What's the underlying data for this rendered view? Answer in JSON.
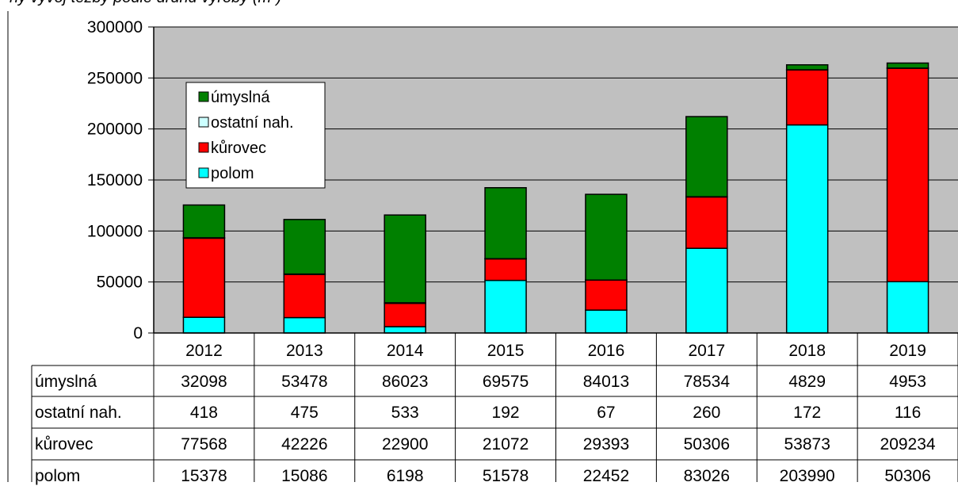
{
  "header": {
    "caption_fragment": "ný vývoj těžby podle druhu výroby (m³)"
  },
  "chart_data": {
    "type": "bar",
    "stacked": true,
    "categories": [
      "2012",
      "2013",
      "2014",
      "2015",
      "2016",
      "2017",
      "2018",
      "2019"
    ],
    "series": [
      {
        "name": "polom",
        "color": "#00FFFF",
        "values": [
          15378,
          15086,
          6198,
          51578,
          22452,
          83026,
          203990,
          50306
        ]
      },
      {
        "name": "kůrovec",
        "color": "#FF0000",
        "values": [
          77568,
          42226,
          22900,
          21072,
          29393,
          50306,
          53873,
          209234
        ]
      },
      {
        "name": "ostatní nah.",
        "color": "#CCFFFF",
        "values": [
          418,
          475,
          533,
          192,
          67,
          260,
          172,
          116
        ]
      },
      {
        "name": "úmyslná",
        "color": "#008000",
        "values": [
          32098,
          53478,
          86023,
          69575,
          84013,
          78534,
          4829,
          4953
        ]
      }
    ],
    "legend_order": [
      "úmyslná",
      "ostatní nah.",
      "kůrovec",
      "polom"
    ],
    "table_row_order": [
      "úmyslná",
      "ostatní nah.",
      "kůrovec",
      "polom"
    ],
    "ylim": [
      0,
      300000
    ],
    "yticks": [
      "0",
      "50000",
      "100000",
      "150000",
      "200000",
      "250000",
      "300000"
    ],
    "grid": true,
    "legend_position": "top-left",
    "plot_background": "#C0C0C0",
    "title": "",
    "xlabel": "",
    "ylabel": ""
  }
}
